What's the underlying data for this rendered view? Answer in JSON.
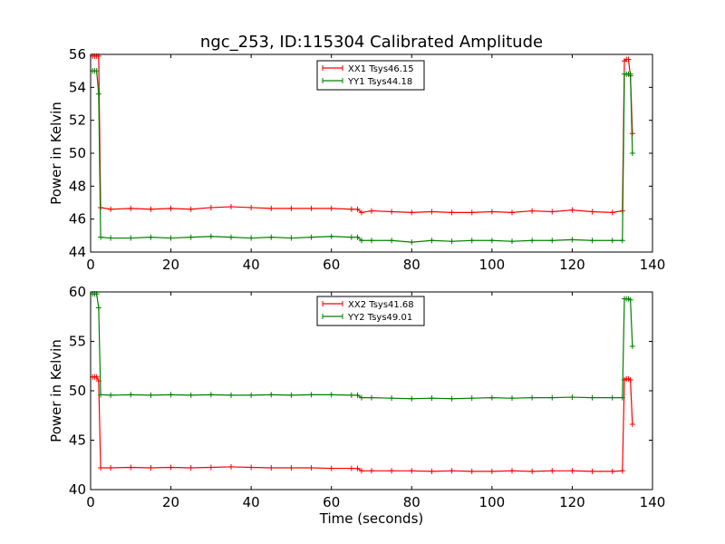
{
  "chart_data": [
    {
      "type": "line",
      "title": "ngc_253, ID:115304 Calibrated Amplitude",
      "xlabel": "",
      "ylabel": "Power in Kelvin",
      "xlim": [
        0,
        140
      ],
      "ylim": [
        44,
        56
      ],
      "xticks": [
        0,
        20,
        40,
        60,
        80,
        100,
        120,
        140
      ],
      "yticks": [
        44,
        46,
        48,
        50,
        52,
        54,
        56
      ],
      "grid": false,
      "legend_position": "top-center",
      "series": [
        {
          "name": "XX1 Tsys46.15",
          "color": "#ff0000",
          "x": [
            0.5,
            1,
            1.5,
            2,
            2.5,
            5,
            10,
            15,
            20,
            25,
            30,
            35,
            40,
            45,
            50,
            55,
            60,
            65,
            66.5,
            67.5,
            70,
            75,
            80,
            85,
            90,
            95,
            100,
            105,
            110,
            115,
            120,
            125,
            130,
            132.5,
            133,
            133.5,
            134,
            134.5,
            135
          ],
          "y": [
            55.9,
            55.9,
            55.9,
            55.9,
            46.7,
            46.6,
            46.65,
            46.6,
            46.65,
            46.6,
            46.7,
            46.75,
            46.7,
            46.65,
            46.65,
            46.65,
            46.65,
            46.6,
            46.6,
            46.4,
            46.5,
            46.45,
            46.4,
            46.45,
            46.4,
            46.4,
            46.45,
            46.4,
            46.5,
            46.45,
            46.55,
            46.45,
            46.4,
            46.5,
            55.6,
            55.7,
            55.7,
            54.7,
            51.2
          ]
        },
        {
          "name": "YY1 Tsys44.18",
          "color": "#008000",
          "x": [
            0.5,
            1,
            1.5,
            2,
            2.5,
            5,
            10,
            15,
            20,
            25,
            30,
            35,
            40,
            45,
            50,
            55,
            60,
            65,
            66.5,
            67.5,
            70,
            75,
            80,
            85,
            90,
            95,
            100,
            105,
            110,
            115,
            120,
            125,
            130,
            132.5,
            133,
            133.5,
            134,
            134.5,
            135
          ],
          "y": [
            55.0,
            55.0,
            55.0,
            53.6,
            44.9,
            44.85,
            44.85,
            44.9,
            44.85,
            44.9,
            44.95,
            44.9,
            44.85,
            44.9,
            44.85,
            44.9,
            44.95,
            44.9,
            44.9,
            44.7,
            44.7,
            44.7,
            44.6,
            44.7,
            44.65,
            44.7,
            44.7,
            44.65,
            44.7,
            44.7,
            44.75,
            44.7,
            44.7,
            44.7,
            54.8,
            54.8,
            54.8,
            54.8,
            50.0
          ]
        }
      ]
    },
    {
      "type": "line",
      "title": "",
      "xlabel": "Time (seconds)",
      "ylabel": "Power in Kelvin",
      "xlim": [
        0,
        140
      ],
      "ylim": [
        40,
        60
      ],
      "xticks": [
        0,
        20,
        40,
        60,
        80,
        100,
        120,
        140
      ],
      "yticks": [
        40,
        45,
        50,
        55,
        60
      ],
      "grid": false,
      "legend_position": "top-center",
      "series": [
        {
          "name": "XX2 Tsys41.68",
          "color": "#ff0000",
          "x": [
            0.5,
            1,
            1.5,
            2,
            2.5,
            5,
            10,
            15,
            20,
            25,
            30,
            35,
            40,
            45,
            50,
            55,
            60,
            65,
            66.5,
            67.5,
            70,
            75,
            80,
            85,
            90,
            95,
            100,
            105,
            110,
            115,
            120,
            125,
            130,
            132.5,
            133,
            133.5,
            134,
            134.5,
            135
          ],
          "y": [
            51.4,
            51.4,
            51.4,
            51.0,
            42.2,
            42.2,
            42.25,
            42.2,
            42.25,
            42.2,
            42.25,
            42.3,
            42.25,
            42.2,
            42.2,
            42.2,
            42.15,
            42.15,
            42.15,
            41.9,
            41.9,
            41.9,
            41.9,
            41.85,
            41.9,
            41.85,
            41.85,
            41.9,
            41.85,
            41.9,
            41.9,
            41.85,
            41.85,
            41.9,
            51.1,
            51.2,
            51.2,
            51.1,
            46.6
          ]
        },
        {
          "name": "YY2 Tsys49.01",
          "color": "#008000",
          "x": [
            0.5,
            1,
            1.5,
            2,
            2.5,
            5,
            10,
            15,
            20,
            25,
            30,
            35,
            40,
            45,
            50,
            55,
            60,
            65,
            66.5,
            67.5,
            70,
            75,
            80,
            85,
            90,
            95,
            100,
            105,
            110,
            115,
            120,
            125,
            130,
            132.5,
            133,
            133.5,
            134,
            134.5,
            135
          ],
          "y": [
            59.8,
            59.8,
            59.8,
            58.4,
            49.6,
            49.55,
            49.6,
            49.55,
            49.6,
            49.55,
            49.6,
            49.55,
            49.55,
            49.6,
            49.55,
            49.6,
            49.6,
            49.55,
            49.55,
            49.3,
            49.3,
            49.25,
            49.2,
            49.25,
            49.2,
            49.25,
            49.3,
            49.25,
            49.3,
            49.3,
            49.35,
            49.3,
            49.3,
            49.3,
            59.3,
            59.3,
            59.3,
            59.2,
            54.5
          ]
        }
      ]
    }
  ]
}
